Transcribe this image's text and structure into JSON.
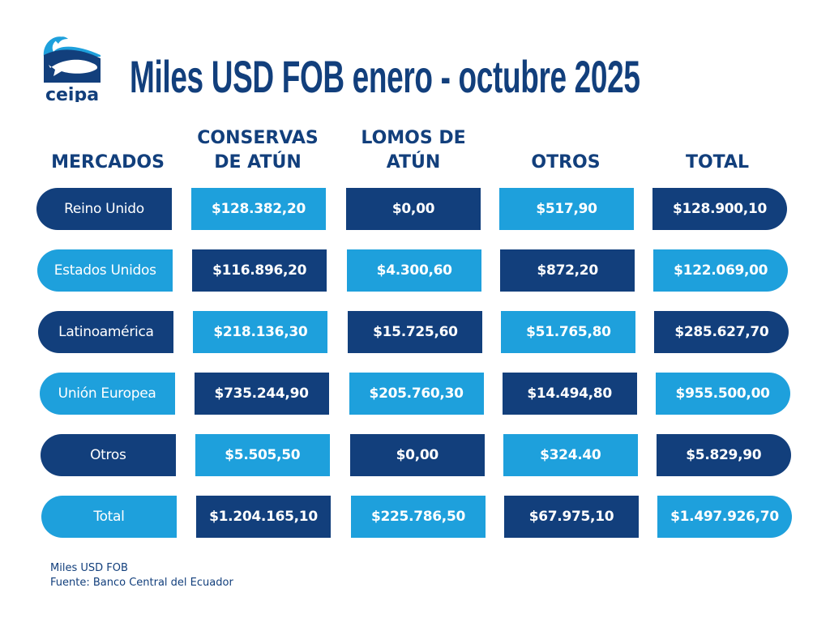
{
  "brand": "ceipa",
  "title": "Miles USD FOB enero - octubre 2025",
  "headers": [
    "MERCADOS",
    "CONSERVAS",
    "DE ATÚN",
    "LOMOS DE",
    "ATÚN",
    "OTROS",
    "TOTAL"
  ],
  "colors": {
    "dark": "#123f7c",
    "light": "#1ea0dc"
  },
  "rows": [
    {
      "market": "Reino Unido",
      "conservas": "$128.382,20",
      "lomos": "$0,00",
      "otros": "$517,90",
      "total": "$128.900,10"
    },
    {
      "market": "Estados Unidos",
      "conservas": "$116.896,20",
      "lomos": "$4.300,60",
      "otros": "$872,20",
      "total": "$122.069,00"
    },
    {
      "market": "Latinoamérica",
      "conservas": "$218.136,30",
      "lomos": "$15.725,60",
      "otros": "$51.765,80",
      "total": "$285.627,70"
    },
    {
      "market": "Unión Europea",
      "conservas": "$735.244,90",
      "lomos": "$205.760,30",
      "otros": "$14.494,80",
      "total": "$955.500,00"
    },
    {
      "market": "Otros",
      "conservas": "$5.505,50",
      "lomos": "$0,00",
      "otros": "$324.40",
      "total": "$5.829,90"
    },
    {
      "market": "Total",
      "conservas": "$1.204.165,10",
      "lomos": "$225.786,50",
      "otros": "$67.975,10",
      "total": "$1.497.926,70"
    }
  ],
  "footer": {
    "unit": "Miles USD FOB",
    "source": "Fuente: Banco Central del Ecuador"
  }
}
